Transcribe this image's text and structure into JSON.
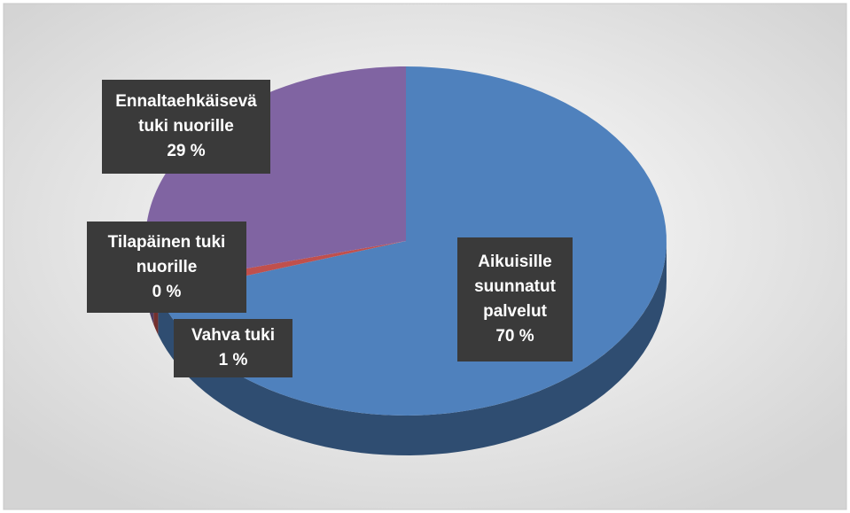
{
  "chart_data": {
    "type": "pie",
    "categories": [
      "Aikuisille suunnatut palvelut",
      "Vahva tuki",
      "Tilapäinen tuki nuorille",
      "Ennaltaehkäisevä tuki nuorille"
    ],
    "values": [
      70,
      1,
      0,
      29
    ],
    "value_labels": [
      "70 %",
      "1 %",
      "0 %",
      "29 %"
    ],
    "colors": [
      "#4f81bd",
      "#c0504d",
      "#9bbb59",
      "#8064a2"
    ]
  }
}
